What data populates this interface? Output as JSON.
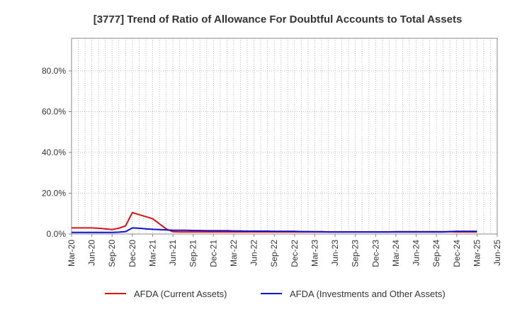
{
  "chart_data": {
    "type": "line",
    "title": "[3777]  Trend of Ratio of Allowance For Doubtful Accounts to Total Assets",
    "xlabel": "",
    "ylabel": "",
    "ylim": [
      0,
      96
    ],
    "yticks": [
      "0.0%",
      "20.0%",
      "40.0%",
      "60.0%",
      "80.0%"
    ],
    "ytick_values": [
      0,
      20,
      40,
      60,
      80
    ],
    "xtick_labels": [
      "Mar-20",
      "Jun-20",
      "Sep-20",
      "Dec-20",
      "Mar-21",
      "Jun-21",
      "Sep-21",
      "Dec-21",
      "Mar-22",
      "Jun-22",
      "Sep-22",
      "Dec-22",
      "Mar-23",
      "Jun-23",
      "Sep-23",
      "Dec-23",
      "Mar-24",
      "Jun-24",
      "Sep-24",
      "Dec-24",
      "Mar-25",
      "Jun-25"
    ],
    "grid": true,
    "legend_position": "bottom",
    "x": [
      "Mar-20",
      "Apr-20",
      "May-20",
      "Jun-20",
      "Jul-20",
      "Aug-20",
      "Sep-20",
      "Oct-20",
      "Nov-20",
      "Dec-20",
      "Jan-21",
      "Feb-21",
      "Mar-21",
      "Apr-21",
      "May-21",
      "Jun-21",
      "Jul-21",
      "Aug-21",
      "Sep-21",
      "Oct-21",
      "Nov-21",
      "Dec-21",
      "Jan-22",
      "Feb-22",
      "Mar-22",
      "Apr-22",
      "May-22",
      "Jun-22",
      "Jul-22",
      "Aug-22",
      "Sep-22",
      "Oct-22",
      "Nov-22",
      "Dec-22",
      "Jan-23",
      "Feb-23",
      "Mar-23",
      "Apr-23",
      "May-23",
      "Jun-23",
      "Jul-23",
      "Aug-23",
      "Sep-23",
      "Oct-23",
      "Nov-23",
      "Dec-23",
      "Jan-24",
      "Feb-24",
      "Mar-24",
      "Apr-24",
      "May-24",
      "Jun-24",
      "Jul-24",
      "Aug-24",
      "Sep-24",
      "Oct-24",
      "Nov-24",
      "Dec-24",
      "Jan-25",
      "Feb-25",
      "Mar-25"
    ],
    "series": [
      {
        "name": "AFDA (Current Assets)",
        "color": "#dd1111",
        "values": [
          3.0,
          3.0,
          3.0,
          3.0,
          2.8,
          2.5,
          2.2,
          2.8,
          4.0,
          10.5,
          9.5,
          8.5,
          7.5,
          5.0,
          2.5,
          1.1,
          1.0,
          1.0,
          1.0,
          1.0,
          1.0,
          1.0,
          1.0,
          1.0,
          1.0,
          1.0,
          1.0,
          1.0,
          1.0,
          1.0,
          1.0,
          1.0,
          1.0,
          1.0,
          1.0,
          1.0,
          1.0,
          1.0,
          1.0,
          1.0,
          1.0,
          1.0,
          1.0,
          1.0,
          1.0,
          1.0,
          1.0,
          1.0,
          1.1,
          1.1,
          1.1,
          1.1,
          1.1,
          1.1,
          1.1,
          1.1,
          1.1,
          1.0,
          1.0,
          1.0,
          1.0
        ]
      },
      {
        "name": "AFDA (Investments and Other Assets)",
        "color": "#1111cc",
        "values": [
          0.8,
          0.8,
          0.8,
          0.8,
          0.8,
          0.8,
          0.8,
          0.9,
          1.2,
          3.0,
          2.8,
          2.5,
          2.3,
          2.2,
          2.0,
          1.8,
          1.8,
          1.8,
          1.7,
          1.7,
          1.6,
          1.6,
          1.6,
          1.6,
          1.5,
          1.5,
          1.4,
          1.4,
          1.4,
          1.4,
          1.3,
          1.3,
          1.3,
          1.3,
          1.2,
          1.2,
          1.1,
          1.1,
          1.0,
          1.0,
          1.0,
          1.0,
          1.0,
          1.0,
          1.0,
          1.0,
          1.0,
          1.0,
          1.0,
          1.0,
          1.0,
          1.0,
          1.0,
          1.0,
          1.0,
          1.0,
          1.2,
          1.3,
          1.3,
          1.3,
          1.3
        ]
      }
    ]
  }
}
